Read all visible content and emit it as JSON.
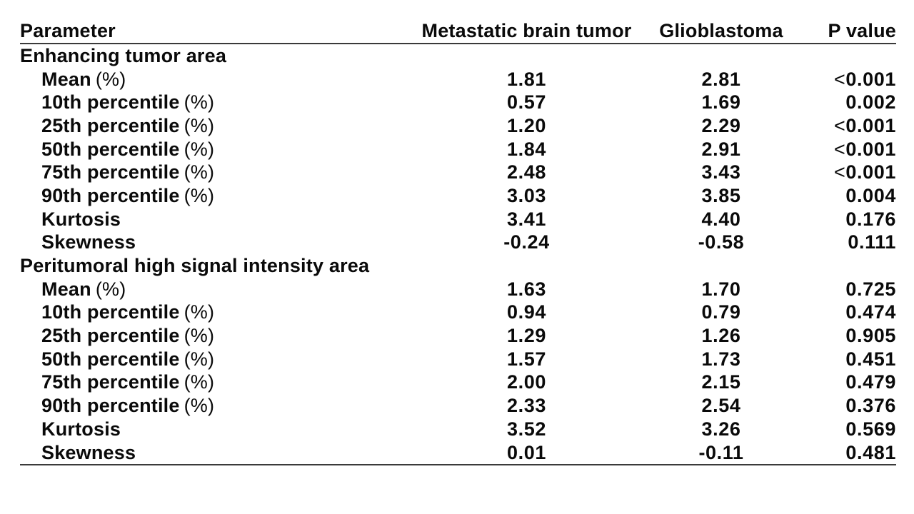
{
  "chart_data": {
    "type": "table",
    "columns": [
      "Parameter",
      "Metastatic brain tumor",
      "Glioblastoma",
      "P value"
    ],
    "sections": [
      {
        "header": "Enhancing tumor area",
        "rows": [
          {
            "parameter": "Mean",
            "unit": "(%)",
            "metastatic_brain_tumor": "1.81",
            "glioblastoma": "2.81",
            "p_prefix": "<",
            "p_value": "0.001"
          },
          {
            "parameter": "10th percentile",
            "unit": "(%)",
            "metastatic_brain_tumor": "0.57",
            "glioblastoma": "1.69",
            "p_prefix": "",
            "p_value": "0.002"
          },
          {
            "parameter": "25th percentile",
            "unit": "(%)",
            "metastatic_brain_tumor": "1.20",
            "glioblastoma": "2.29",
            "p_prefix": "<",
            "p_value": "0.001"
          },
          {
            "parameter": "50th percentile",
            "unit": "(%)",
            "metastatic_brain_tumor": "1.84",
            "glioblastoma": "2.91",
            "p_prefix": "<",
            "p_value": "0.001"
          },
          {
            "parameter": "75th percentile",
            "unit": "(%)",
            "metastatic_brain_tumor": "2.48",
            "glioblastoma": "3.43",
            "p_prefix": "<",
            "p_value": "0.001"
          },
          {
            "parameter": "90th percentile",
            "unit": "(%)",
            "metastatic_brain_tumor": "3.03",
            "glioblastoma": "3.85",
            "p_prefix": "",
            "p_value": "0.004"
          },
          {
            "parameter": "Kurtosis",
            "unit": "",
            "metastatic_brain_tumor": "3.41",
            "glioblastoma": "4.40",
            "p_prefix": "",
            "p_value": "0.176"
          },
          {
            "parameter": "Skewness",
            "unit": "",
            "metastatic_brain_tumor": "-0.24",
            "glioblastoma": "-0.58",
            "p_prefix": "",
            "p_value": "0.111"
          }
        ]
      },
      {
        "header": "Peritumoral high signal intensity area",
        "rows": [
          {
            "parameter": "Mean",
            "unit": "(%)",
            "metastatic_brain_tumor": "1.63",
            "glioblastoma": "1.70",
            "p_prefix": "",
            "p_value": "0.725"
          },
          {
            "parameter": "10th percentile",
            "unit": "(%)",
            "metastatic_brain_tumor": "0.94",
            "glioblastoma": "0.79",
            "p_prefix": "",
            "p_value": "0.474"
          },
          {
            "parameter": "25th percentile",
            "unit": "(%)",
            "metastatic_brain_tumor": "1.29",
            "glioblastoma": "1.26",
            "p_prefix": "",
            "p_value": "0.905"
          },
          {
            "parameter": "50th percentile",
            "unit": "(%)",
            "metastatic_brain_tumor": "1.57",
            "glioblastoma": "1.73",
            "p_prefix": "",
            "p_value": "0.451"
          },
          {
            "parameter": "75th percentile",
            "unit": "(%)",
            "metastatic_brain_tumor": "2.00",
            "glioblastoma": "2.15",
            "p_prefix": "",
            "p_value": "0.479"
          },
          {
            "parameter": "90th percentile",
            "unit": "(%)",
            "metastatic_brain_tumor": "2.33",
            "glioblastoma": "2.54",
            "p_prefix": "",
            "p_value": "0.376"
          },
          {
            "parameter": "Kurtosis",
            "unit": "",
            "metastatic_brain_tumor": "3.52",
            "glioblastoma": "3.26",
            "p_prefix": "",
            "p_value": "0.569"
          },
          {
            "parameter": "Skewness",
            "unit": "",
            "metastatic_brain_tumor": "0.01",
            "glioblastoma": "-0.11",
            "p_prefix": "",
            "p_value": "0.481"
          }
        ]
      }
    ],
    "layout": {
      "grid": "off",
      "rules": [
        "below-header",
        "table-bottom"
      ],
      "column_alignments": [
        "left",
        "center",
        "center",
        "right"
      ]
    },
    "colors": {
      "background": "#ffffff",
      "text": "#0a0a0a",
      "rule": "#3a3a3a"
    }
  }
}
